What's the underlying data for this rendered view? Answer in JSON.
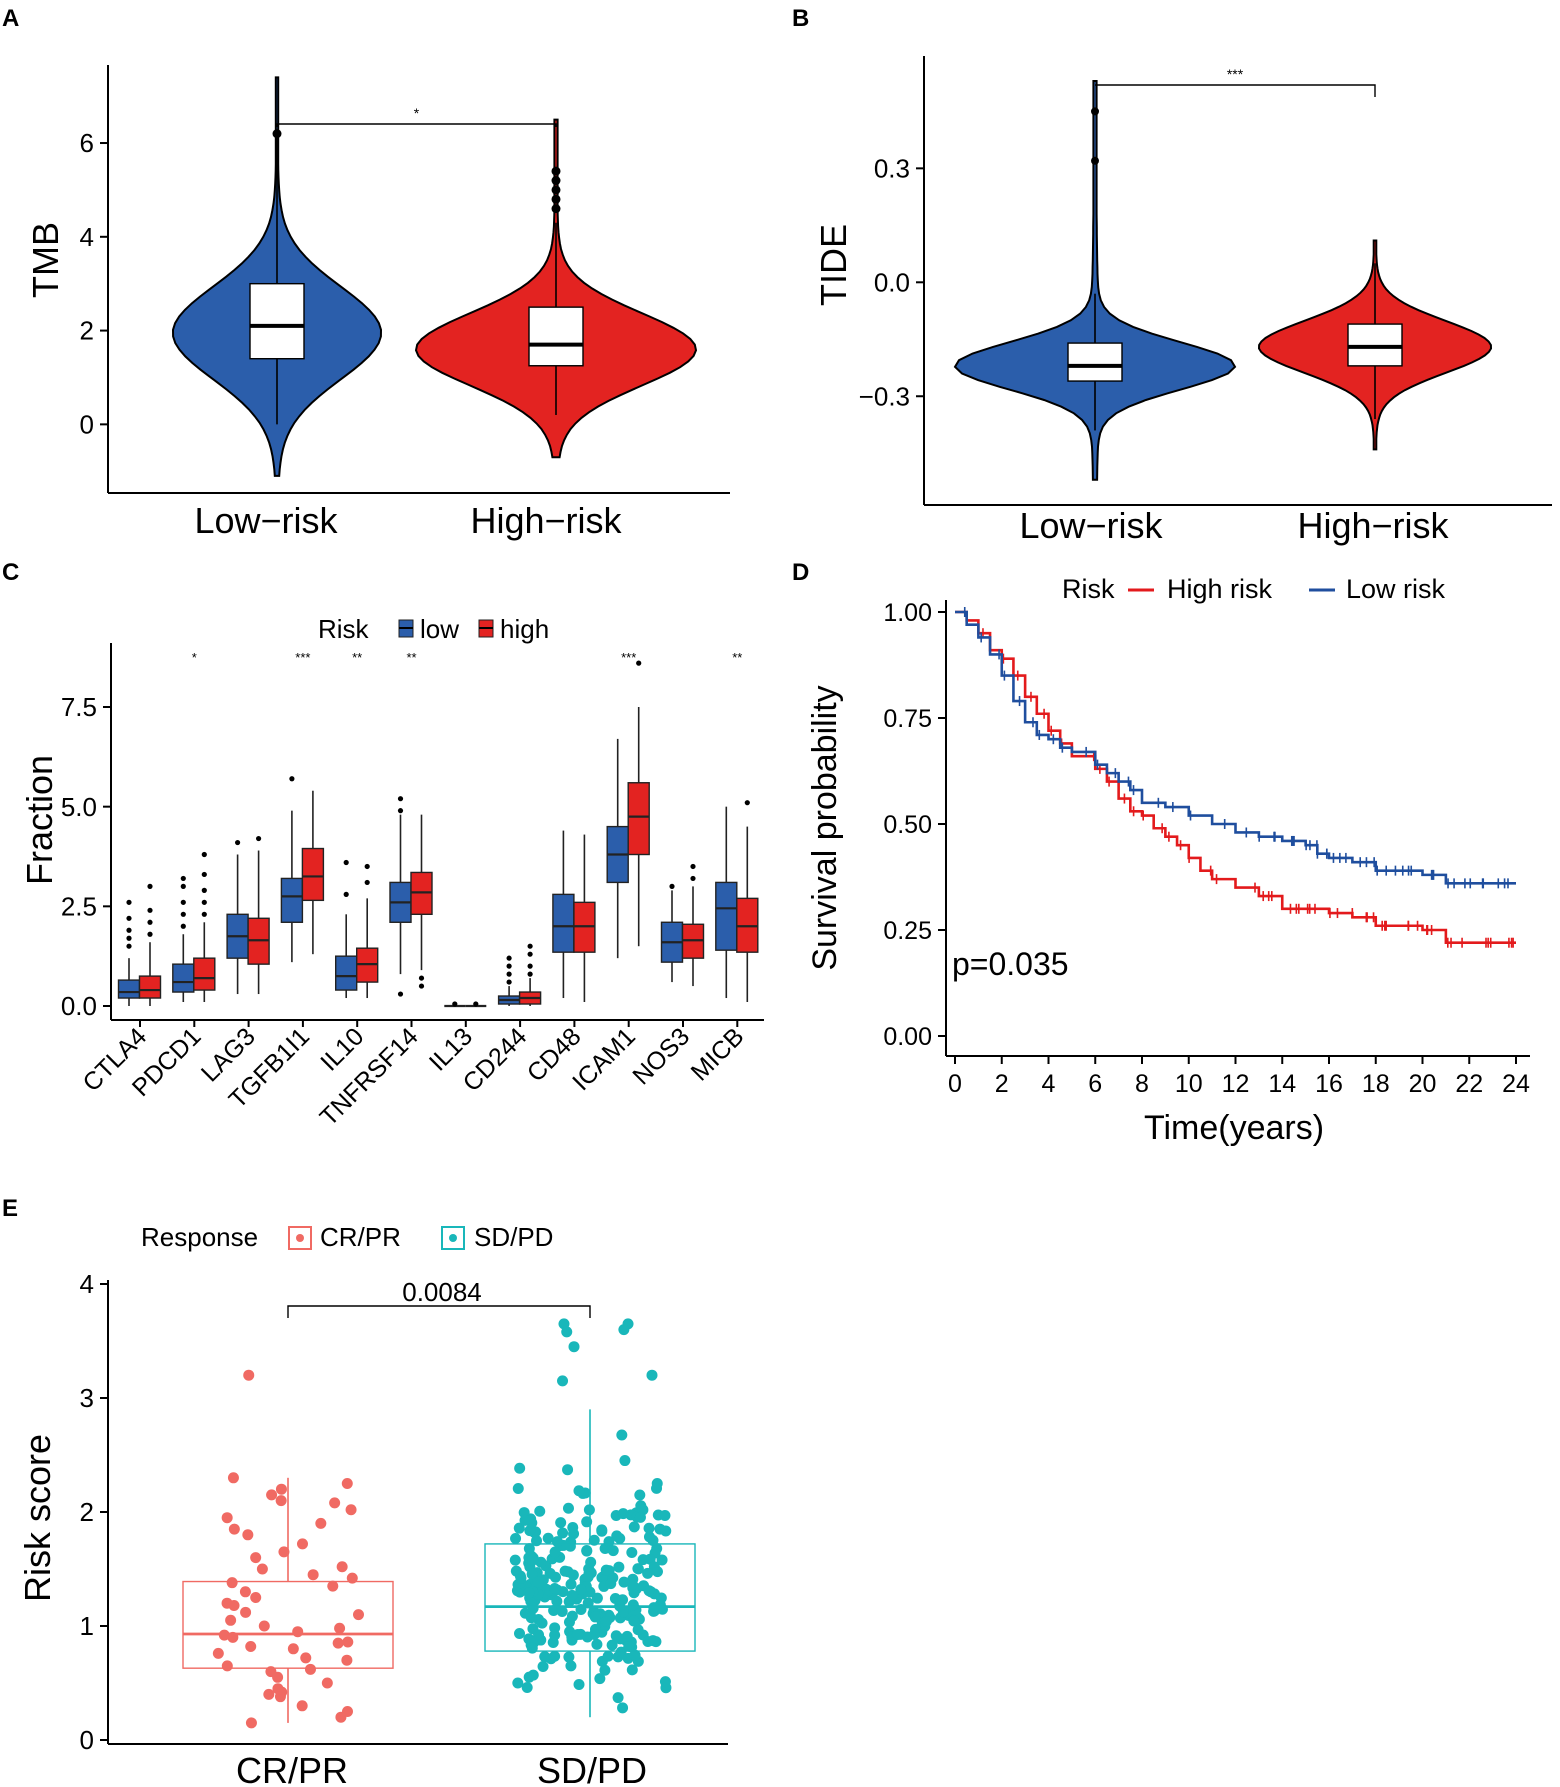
{
  "colors": {
    "low": "#2B5EAB",
    "high": "#E32321",
    "km_high": "#E31A1C",
    "km_low": "#1F4E9E",
    "cr": "#F06A63",
    "sd": "#19B7BA"
  },
  "panels": {
    "A": {
      "label": "A",
      "asterisks": "*"
    },
    "B": {
      "label": "B",
      "asterisks": "***"
    },
    "C": {
      "label": "C",
      "legend_title": "Risk",
      "legend_low": "low",
      "legend_high": "high"
    },
    "D": {
      "label": "D",
      "legend_title": "Risk",
      "legend_high": "High risk",
      "legend_low": "Low risk",
      "pvalue": "p=0.035"
    },
    "E": {
      "label": "E",
      "legend_title": "Response",
      "legend_cr": "CR/PR",
      "legend_sd": "SD/PD",
      "pvalue": "0.0084"
    }
  },
  "chart_data": [
    {
      "id": "A",
      "type": "violin",
      "ylabel": "TMB",
      "xlabel": "",
      "categories": [
        "Low−risk",
        "High−risk"
      ],
      "yticks": [
        0,
        2,
        4,
        6
      ],
      "ylim": [
        -1.4,
        7.6
      ],
      "groups": [
        {
          "name": "Low−risk",
          "min": 0,
          "q1": 1.4,
          "median": 2.1,
          "q3": 3.0,
          "max": 6.2,
          "violin_range": [
            -1.1,
            7.4
          ],
          "outliers": [
            6.2
          ]
        },
        {
          "name": "High−risk",
          "min": 0.2,
          "q1": 1.25,
          "median": 1.7,
          "q3": 2.5,
          "max": 4.3,
          "violin_range": [
            -0.7,
            6.5
          ],
          "outliers": [
            4.6,
            4.8,
            5.0,
            5.2,
            5.4
          ]
        }
      ],
      "significance": "*"
    },
    {
      "id": "B",
      "type": "violin",
      "ylabel": "TIDE",
      "xlabel": "",
      "categories": [
        "Low−risk",
        "High−risk"
      ],
      "yticks": [
        -0.3,
        0.0,
        0.3
      ],
      "ytick_labels": [
        "−0.3",
        "0.0",
        "0.3"
      ],
      "ylim": [
        -0.56,
        0.58
      ],
      "groups": [
        {
          "name": "Low−risk",
          "min": -0.39,
          "q1": -0.26,
          "median": -0.22,
          "q3": -0.16,
          "max": -0.03,
          "violin_range": [
            -0.52,
            0.53
          ],
          "outliers": [
            0.32,
            0.45
          ]
        },
        {
          "name": "High−risk",
          "min": -0.36,
          "q1": -0.22,
          "median": -0.17,
          "q3": -0.11,
          "max": 0.05,
          "violin_range": [
            -0.44,
            0.11
          ],
          "outliers": []
        }
      ],
      "significance": "***"
    },
    {
      "id": "C",
      "type": "box",
      "ylabel": "Fraction",
      "xlabel": "",
      "categories": [
        "CTLA4",
        "PDCD1",
        "LAG3",
        "TGFB1I1",
        "IL10",
        "TNFRSF14",
        "IL13",
        "CD244",
        "CD48",
        "ICAM1",
        "NOS3",
        "MICB"
      ],
      "yticks": [
        0.0,
        2.5,
        5.0,
        7.5
      ],
      "ytick_labels": [
        "0.0",
        "2.5",
        "5.0",
        "7.5"
      ],
      "ylim": [
        -0.2,
        9.0
      ],
      "significance": [
        "",
        "*",
        "",
        "***",
        "**",
        "**",
        "",
        "",
        "",
        "***",
        "",
        "**"
      ],
      "series": [
        {
          "name": "low",
          "boxes": [
            [
              0.0,
              0.2,
              0.35,
              0.65,
              1.2
            ],
            [
              0.1,
              0.35,
              0.6,
              1.05,
              1.8
            ],
            [
              0.3,
              1.2,
              1.75,
              2.3,
              3.8
            ],
            [
              1.1,
              2.1,
              2.75,
              3.2,
              4.9
            ],
            [
              0.2,
              0.4,
              0.75,
              1.25,
              2.3
            ],
            [
              0.8,
              2.1,
              2.6,
              3.1,
              4.8
            ],
            [
              0.0,
              0.0,
              0.0,
              0.0,
              0.03
            ],
            [
              0.0,
              0.05,
              0.15,
              0.25,
              0.5
            ],
            [
              0.2,
              1.35,
              2.0,
              2.8,
              4.4
            ],
            [
              1.2,
              3.1,
              3.8,
              4.5,
              6.7
            ],
            [
              0.6,
              1.1,
              1.6,
              2.1,
              2.9
            ],
            [
              0.2,
              1.4,
              2.45,
              3.1,
              5.0
            ]
          ],
          "outliers": [
            [
              1.5,
              1.7,
              1.9,
              2.2,
              2.6
            ],
            [
              2.0,
              2.3,
              2.6,
              3.0,
              3.2
            ],
            [
              4.1
            ],
            [
              5.7
            ],
            [
              2.8,
              3.6
            ],
            [
              0.3,
              4.9,
              5.2
            ],
            [
              0.05
            ],
            [
              0.6,
              0.8,
              1.0,
              1.2
            ],
            [],
            [],
            [
              3.0
            ],
            []
          ]
        },
        {
          "name": "high",
          "boxes": [
            [
              0.0,
              0.2,
              0.4,
              0.75,
              1.6
            ],
            [
              0.1,
              0.4,
              0.7,
              1.2,
              2.1
            ],
            [
              0.3,
              1.05,
              1.65,
              2.2,
              3.9
            ],
            [
              1.3,
              2.65,
              3.25,
              3.95,
              5.4
            ],
            [
              0.2,
              0.6,
              1.05,
              1.45,
              2.7
            ],
            [
              0.9,
              2.3,
              2.85,
              3.35,
              4.8
            ],
            [
              0.0,
              0.0,
              0.0,
              0.0,
              0.03
            ],
            [
              0.0,
              0.05,
              0.2,
              0.35,
              0.7
            ],
            [
              0.1,
              1.35,
              2.0,
              2.6,
              4.3
            ],
            [
              1.5,
              3.8,
              4.75,
              5.6,
              7.5
            ],
            [
              0.5,
              1.2,
              1.65,
              2.05,
              3.0
            ],
            [
              0.1,
              1.35,
              2.0,
              2.7,
              4.5
            ]
          ],
          "outliers": [
            [
              1.8,
              2.1,
              2.4,
              3.0
            ],
            [
              2.3,
              2.6,
              2.9,
              3.3,
              3.8
            ],
            [
              4.2
            ],
            [],
            [
              3.1,
              3.5
            ],
            [
              0.5,
              0.7
            ],
            [
              0.05
            ],
            [
              0.8,
              1.0,
              1.3,
              1.5
            ],
            [],
            [
              8.6
            ],
            [
              3.2,
              3.5
            ],
            [
              5.1
            ]
          ]
        }
      ],
      "legend_title": "Risk"
    },
    {
      "id": "D",
      "type": "line",
      "title": "",
      "xlabel": "Time(years)",
      "ylabel": "Survival probability",
      "xticks": [
        0,
        2,
        4,
        6,
        8,
        10,
        12,
        14,
        16,
        18,
        20,
        22,
        24
      ],
      "yticks": [
        0.0,
        0.25,
        0.5,
        0.75,
        1.0
      ],
      "ytick_labels": [
        "0.00",
        "0.25",
        "0.50",
        "0.75",
        "1.00"
      ],
      "xlim": [
        -0.3,
        25.2
      ],
      "ylim": [
        -0.02,
        1.05
      ],
      "series": [
        {
          "name": "High risk",
          "x": [
            0,
            0.5,
            1,
            1.5,
            2,
            2.5,
            3,
            3.5,
            4,
            4.5,
            5,
            6,
            6.5,
            7,
            7.5,
            8,
            8.5,
            9,
            9.5,
            10,
            10.5,
            11,
            12,
            13,
            14,
            15,
            16,
            17,
            18,
            19,
            20,
            21,
            22,
            23,
            24
          ],
          "y": [
            1.0,
            0.98,
            0.95,
            0.91,
            0.89,
            0.85,
            0.8,
            0.76,
            0.72,
            0.69,
            0.66,
            0.63,
            0.6,
            0.56,
            0.53,
            0.52,
            0.49,
            0.47,
            0.45,
            0.42,
            0.39,
            0.37,
            0.35,
            0.33,
            0.3,
            0.3,
            0.29,
            0.28,
            0.26,
            0.26,
            0.25,
            0.22,
            0.22,
            0.22,
            0.22
          ]
        },
        {
          "name": "Low risk",
          "x": [
            0,
            0.5,
            1,
            1.5,
            2,
            2.5,
            3,
            3.5,
            4,
            4.5,
            5,
            6,
            6.5,
            7,
            7.5,
            8,
            9,
            10,
            11,
            12,
            13,
            14,
            15,
            15.5,
            16,
            17,
            18,
            19,
            20,
            21,
            22,
            23,
            24
          ],
          "y": [
            1.0,
            0.97,
            0.94,
            0.9,
            0.85,
            0.79,
            0.74,
            0.71,
            0.7,
            0.68,
            0.67,
            0.64,
            0.62,
            0.6,
            0.58,
            0.55,
            0.54,
            0.52,
            0.5,
            0.48,
            0.47,
            0.46,
            0.45,
            0.43,
            0.42,
            0.41,
            0.39,
            0.39,
            0.38,
            0.36,
            0.36,
            0.36,
            0.36
          ]
        }
      ],
      "annotation": "p=0.035"
    },
    {
      "id": "E",
      "type": "box",
      "ylabel": "Risk score",
      "xlabel": "",
      "categories": [
        "CR/PR",
        "SD/PD"
      ],
      "yticks": [
        0,
        1,
        2,
        3,
        4
      ],
      "ylim": [
        -0.05,
        4.05
      ],
      "groups": [
        {
          "name": "CR/PR",
          "min": 0.15,
          "q1": 0.63,
          "median": 0.93,
          "q3": 1.39,
          "max": 2.3
        },
        {
          "name": "SD/PD",
          "min": 0.2,
          "q1": 0.78,
          "median": 1.17,
          "q3": 1.72,
          "max": 2.9
        }
      ],
      "points": [
        {
          "group": "CR/PR",
          "values": [
            3.2,
            2.3,
            2.25,
            2.2,
            2.15,
            2.1,
            2.08,
            2.02,
            1.95,
            1.9,
            1.85,
            1.8,
            1.72,
            1.65,
            1.6,
            1.52,
            1.5,
            1.45,
            1.42,
            1.38,
            1.35,
            1.3,
            1.25,
            1.2,
            1.18,
            1.12,
            1.1,
            1.05,
            1.0,
            0.98,
            0.95,
            0.92,
            0.9,
            0.86,
            0.85,
            0.82,
            0.8,
            0.76,
            0.72,
            0.7,
            0.65,
            0.62,
            0.6,
            0.55,
            0.5,
            0.45,
            0.42,
            0.4,
            0.38,
            0.3,
            0.25,
            0.2,
            0.15
          ]
        },
        {
          "group": "SD/PD",
          "n": 260,
          "max_outliers": [
            3.65,
            3.65,
            3.6,
            3.58,
            3.45,
            3.2,
            3.15
          ]
        }
      ],
      "significance": "0.0084"
    }
  ]
}
